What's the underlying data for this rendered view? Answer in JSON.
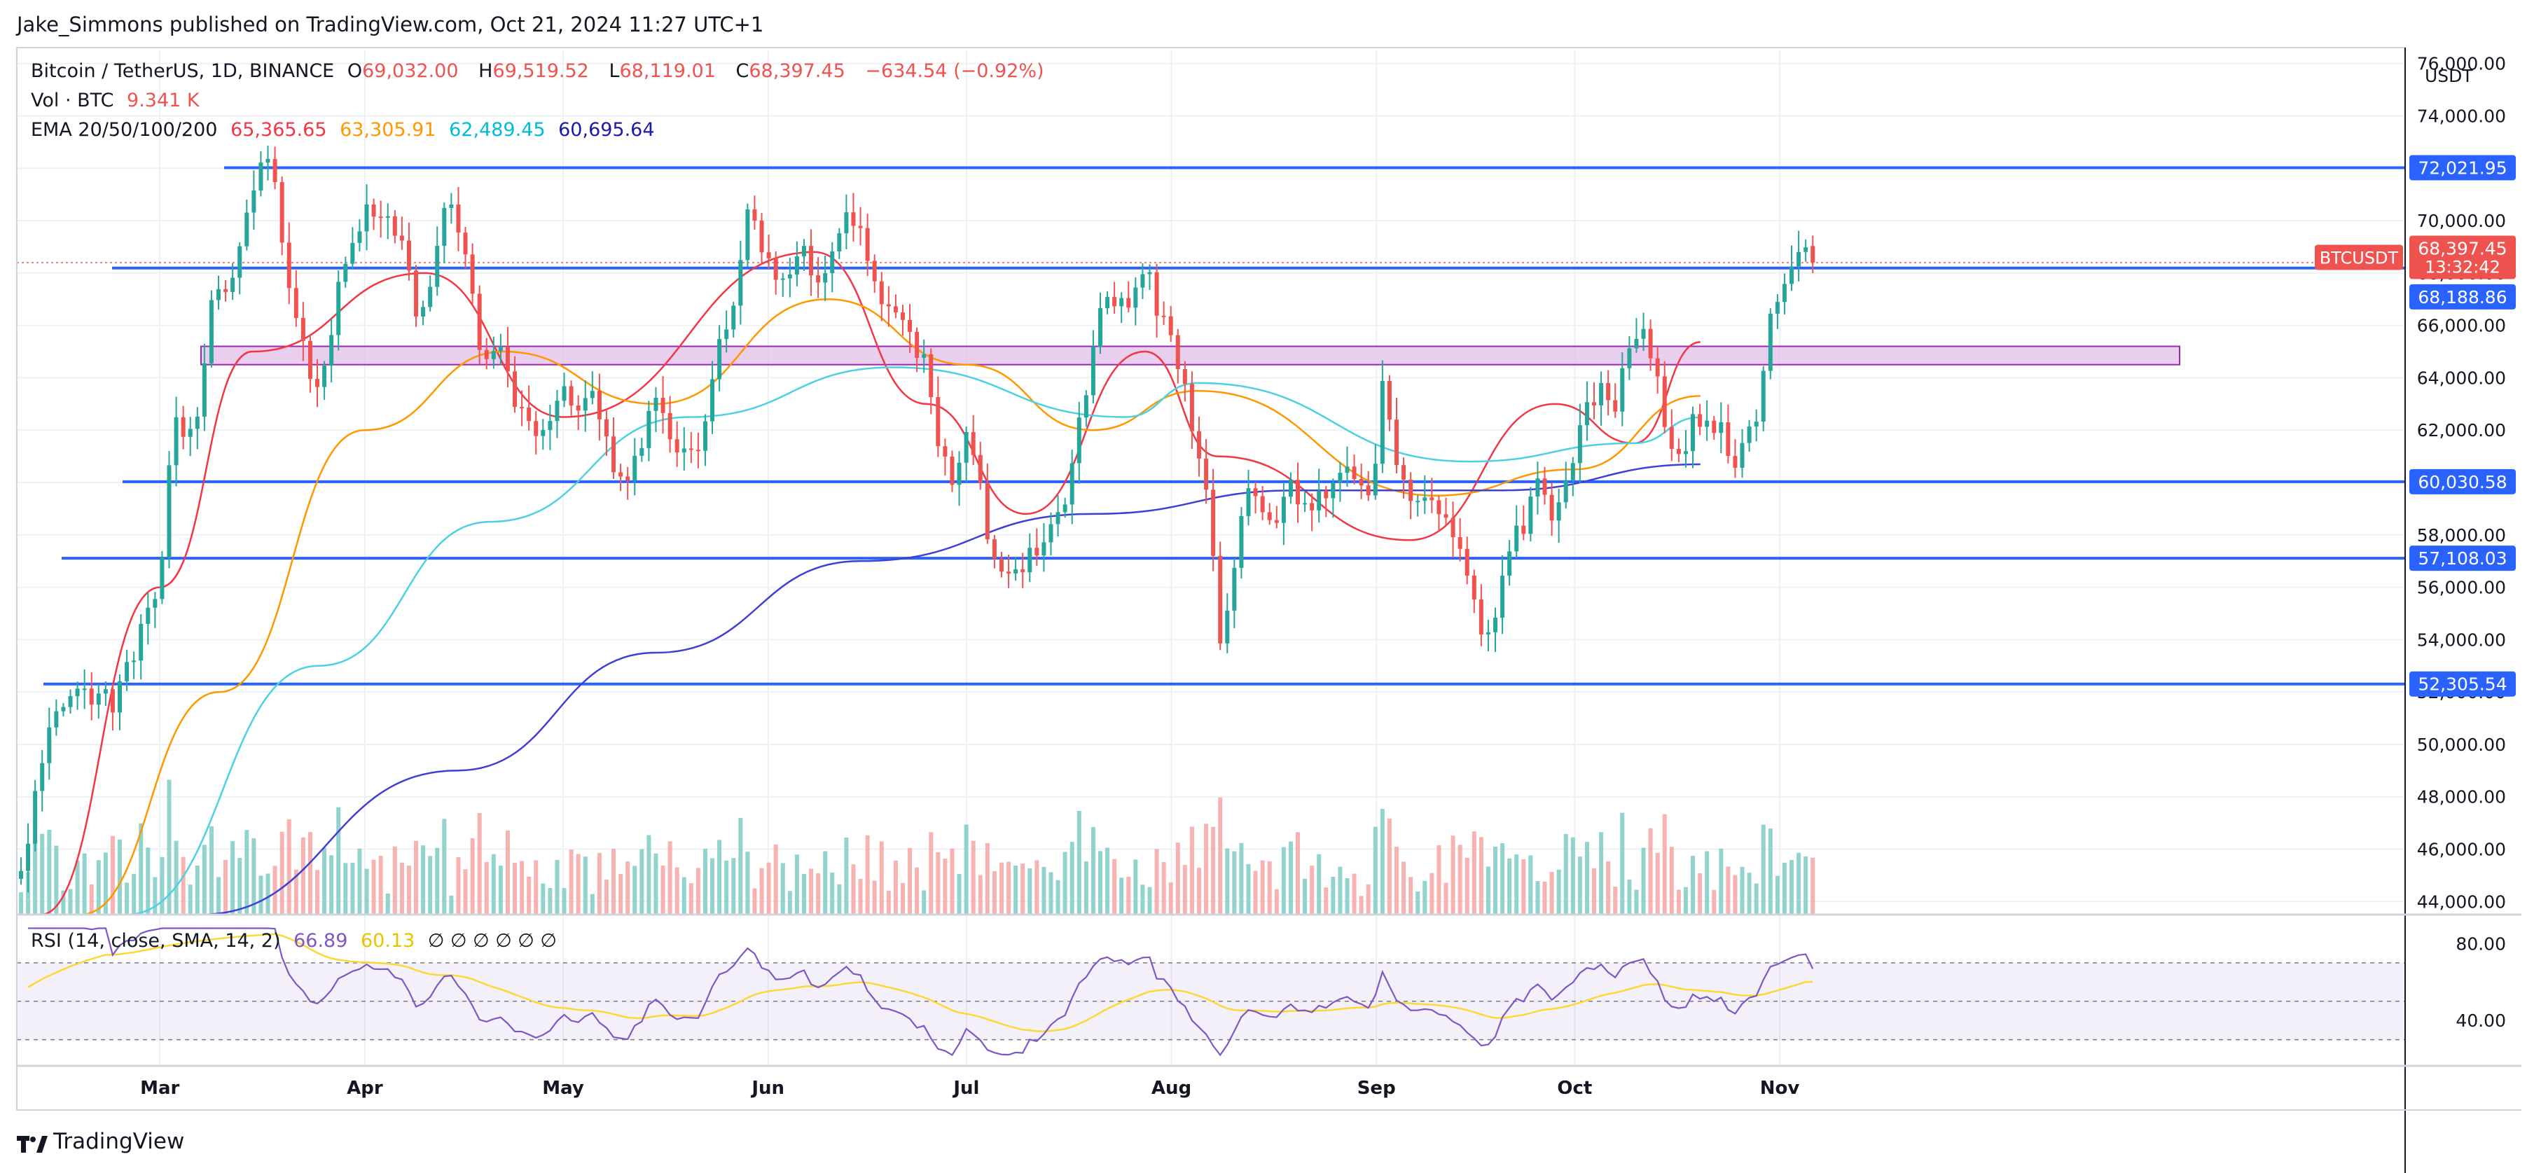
{
  "header": {
    "publisher_line": "Jake_Simmons published on TradingView.com, Oct 21, 2024 11:27 UTC+1"
  },
  "legend": {
    "symbol": "Bitcoin / TetherUS, 1D, BINANCE",
    "open_label": "O",
    "open": "69,032.00",
    "high_label": "H",
    "high": "69,519.52",
    "low_label": "L",
    "low": "68,119.01",
    "close_label": "C",
    "close": "68,397.45",
    "change": "−634.54 (−0.92%)",
    "vol_label": "Vol · BTC",
    "vol_value": "9.341 K",
    "ema_label": "EMA 20/50/100/200",
    "ema_values": [
      "65,365.65",
      "63,305.91",
      "62,489.45",
      "60,695.64"
    ]
  },
  "rsi_legend": {
    "label": "RSI (14, close, SMA, 14, 2)",
    "rsi": "66.89",
    "sma": "60.13",
    "empty_marks": "∅ ∅ ∅ ∅ ∅ ∅"
  },
  "axis": {
    "unit": "USDT"
  },
  "brand": {
    "name": "TradingView"
  },
  "price_tag": {
    "symbol": "BTCUSDT",
    "price": "68,397.45",
    "countdown": "13:32:42"
  },
  "colors": {
    "up": "#26a69a",
    "down": "#ef5350",
    "level": "#2962ff",
    "ema20": "#f23645",
    "ema50": "#ff9800",
    "ema100": "#4dd0e1",
    "ema200": "#3f3fd4",
    "zone": "#ce93d8",
    "rsi": "#7e57c2",
    "rsi_sma": "#fdd835"
  },
  "chart_data": {
    "type": "candlestick",
    "timeframe": "1D",
    "x_ticks": [
      "Mar",
      "Apr",
      "May",
      "Jun",
      "Jul",
      "Aug",
      "Sep",
      "Oct",
      "Nov"
    ],
    "y_ticks": [
      44000,
      46000,
      48000,
      50000,
      52000,
      54000,
      56000,
      58000,
      60000,
      62000,
      64000,
      66000,
      68000,
      70000,
      72000,
      74000,
      76000
    ],
    "ylim": [
      43500,
      76500
    ],
    "horizontal_levels": [
      72021.95,
      68188.86,
      60030.58,
      57108.03,
      52305.54
    ],
    "zone": {
      "from": 64500,
      "to": 65200
    },
    "current_price": 68397.45,
    "ema_key_points": {
      "ema20": [
        [
          "2024-02-12",
          43500
        ],
        [
          "2024-03-01",
          56000
        ],
        [
          "2024-03-15",
          65000
        ],
        [
          "2024-04-10",
          68000
        ],
        [
          "2024-05-01",
          62500
        ],
        [
          "2024-06-08",
          68800
        ],
        [
          "2024-06-25",
          63000
        ],
        [
          "2024-07-10",
          58800
        ],
        [
          "2024-07-28",
          65000
        ],
        [
          "2024-08-08",
          61000
        ],
        [
          "2024-09-06",
          57800
        ],
        [
          "2024-09-28",
          63000
        ],
        [
          "2024-10-10",
          61500
        ],
        [
          "2024-10-20",
          65365.65
        ]
      ],
      "ema50": [
        [
          "2024-02-18",
          43500
        ],
        [
          "2024-03-10",
          52000
        ],
        [
          "2024-04-01",
          62000
        ],
        [
          "2024-04-22",
          65000
        ],
        [
          "2024-05-15",
          63000
        ],
        [
          "2024-06-10",
          67000
        ],
        [
          "2024-07-01",
          64500
        ],
        [
          "2024-07-20",
          62000
        ],
        [
          "2024-08-05",
          63500
        ],
        [
          "2024-09-10",
          59500
        ],
        [
          "2024-10-01",
          60500
        ],
        [
          "2024-10-20",
          63305.91
        ]
      ],
      "ema100": [
        [
          "2024-02-25",
          43500
        ],
        [
          "2024-03-25",
          53000
        ],
        [
          "2024-04-20",
          58500
        ],
        [
          "2024-05-20",
          62500
        ],
        [
          "2024-06-20",
          64400
        ],
        [
          "2024-07-25",
          62500
        ],
        [
          "2024-08-05",
          63800
        ],
        [
          "2024-09-15",
          60800
        ],
        [
          "2024-10-10",
          61500
        ],
        [
          "2024-10-20",
          62489.45
        ]
      ],
      "ema200": [
        [
          "2024-03-07",
          43500
        ],
        [
          "2024-04-15",
          49000
        ],
        [
          "2024-05-15",
          53500
        ],
        [
          "2024-06-15",
          57000
        ],
        [
          "2024-07-20",
          58800
        ],
        [
          "2024-08-20",
          59700
        ],
        [
          "2024-09-20",
          59700
        ],
        [
          "2024-10-20",
          60695.64
        ]
      ]
    },
    "rsi": {
      "ylim": [
        20,
        90
      ],
      "ticks": [
        40,
        80
      ],
      "bands": [
        30,
        50,
        70
      ],
      "last": 66.89,
      "sma_last": 60.13
    }
  }
}
